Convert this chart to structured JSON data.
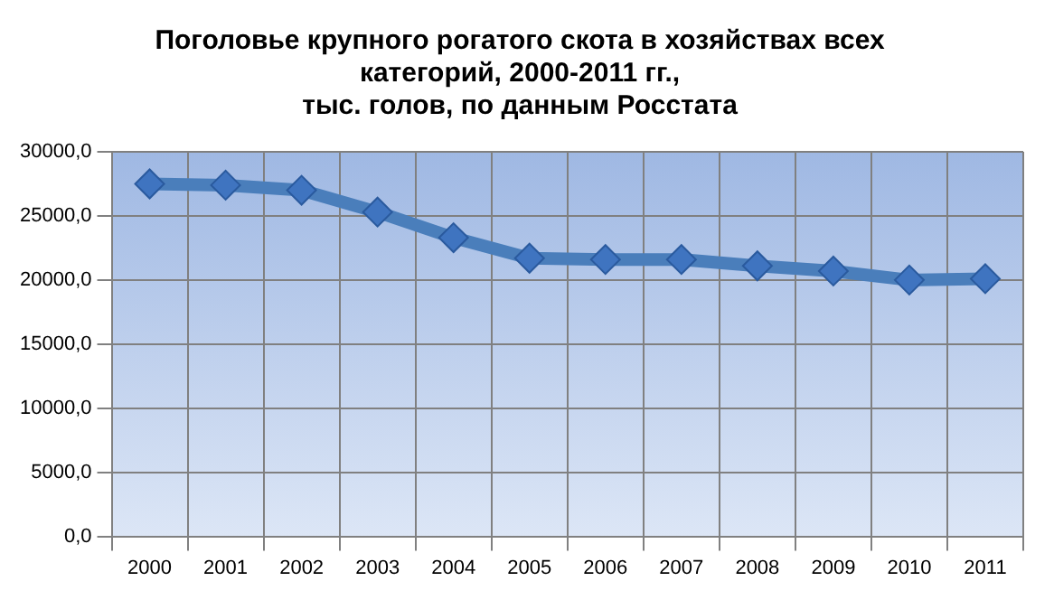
{
  "chart_data": {
    "type": "line",
    "title": "Поголовье крупного рогатого скота в хозяйствах всех\nкатегорий, 2000-2011 гг.,\nтыс. голов, по данным Росстата",
    "categories": [
      "2000",
      "2001",
      "2002",
      "2003",
      "2004",
      "2005",
      "2006",
      "2007",
      "2008",
      "2009",
      "2010",
      "2011"
    ],
    "series": [
      {
        "color": "#4a7ebb",
        "values": [
          27500,
          27400,
          27000,
          25300,
          23300,
          21700,
          21600,
          21600,
          21100,
          20700,
          20000,
          20100
        ]
      }
    ],
    "ylim": [
      0,
      30000
    ],
    "yticks": [
      {
        "value": 0,
        "label": "0,0"
      },
      {
        "value": 5000,
        "label": "5000,0"
      },
      {
        "value": 10000,
        "label": "10000,0"
      },
      {
        "value": 15000,
        "label": "15000,0"
      },
      {
        "value": 20000,
        "label": "20000,0"
      },
      {
        "value": 25000,
        "label": "25000,0"
      },
      {
        "value": 30000,
        "label": "30000,0"
      }
    ],
    "grid": true,
    "marker": "diamond",
    "line_style": "solid",
    "legend": false
  }
}
